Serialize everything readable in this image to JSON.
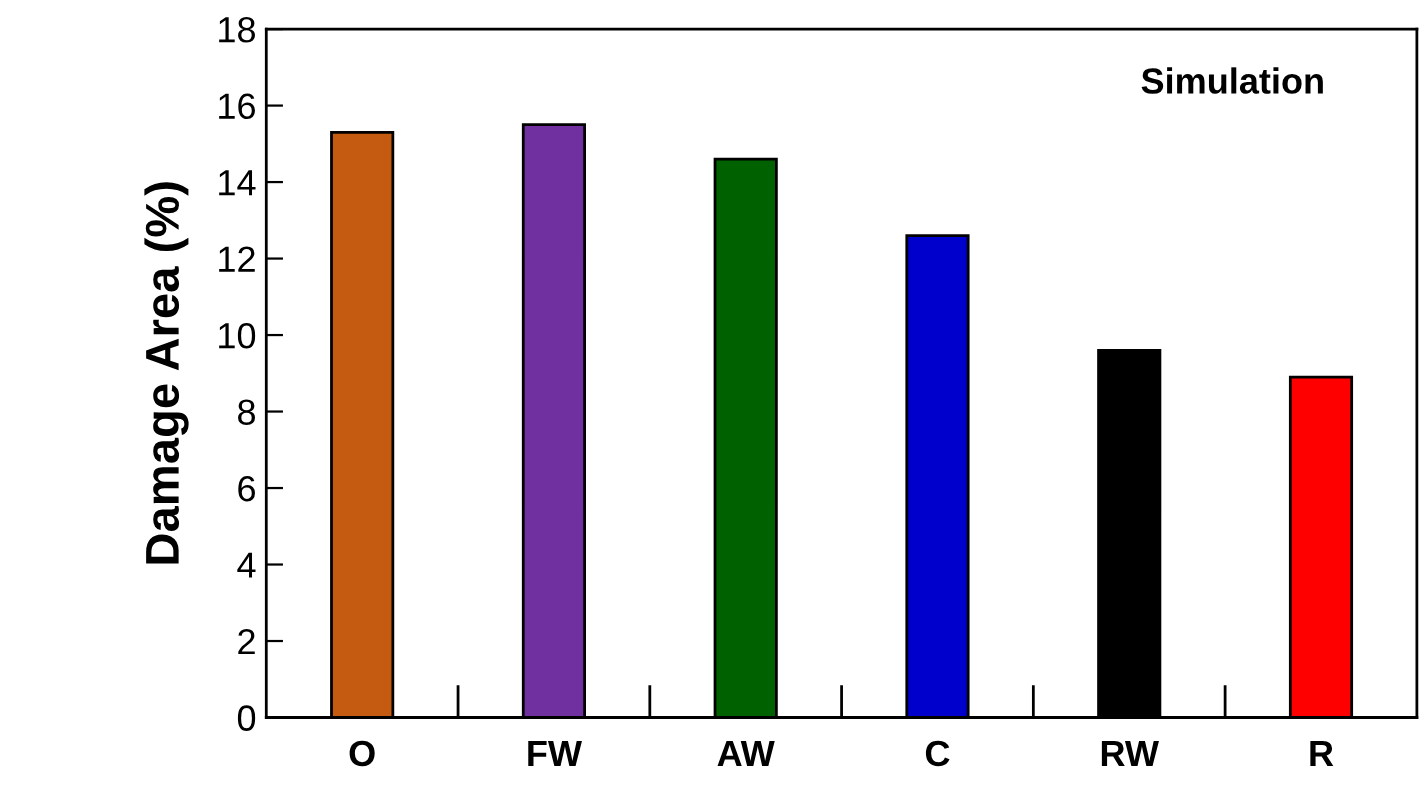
{
  "chart_data": {
    "type": "bar",
    "ylabel": "Damage Area (%)",
    "categories": [
      "O",
      "FW",
      "AW",
      "C",
      "RW",
      "R"
    ],
    "values": [
      15.3,
      15.5,
      14.6,
      12.6,
      9.6,
      8.9
    ],
    "colors": [
      "#c55a11",
      "#7030a0",
      "#006100",
      "#0000cc",
      "#000000",
      "#ff0000"
    ],
    "ylim": [
      0,
      18
    ],
    "yticks": [
      0,
      2,
      4,
      6,
      8,
      10,
      12,
      14,
      16,
      18
    ],
    "grid": false,
    "annotations": [
      "Simulation"
    ]
  }
}
